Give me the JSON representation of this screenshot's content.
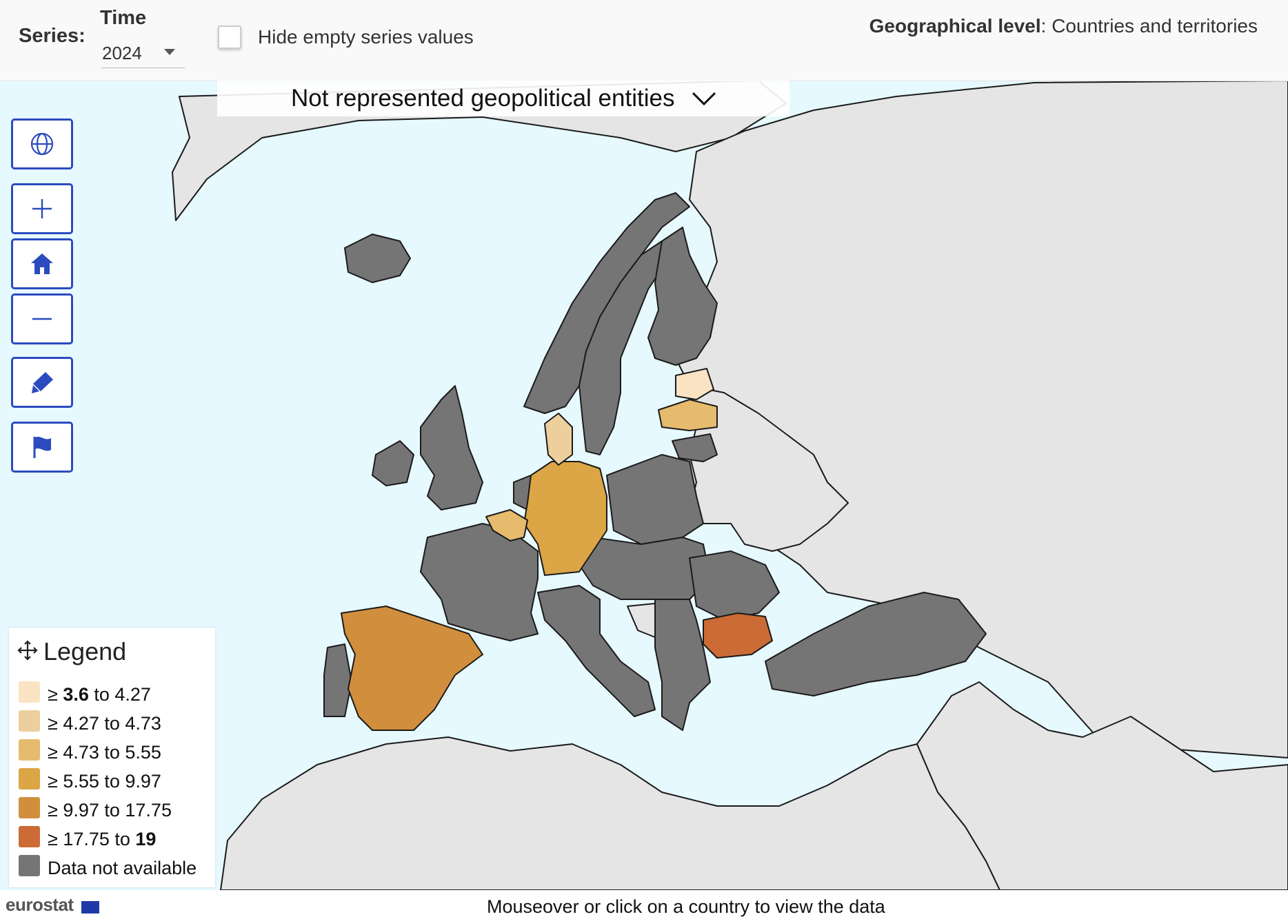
{
  "toolbar": {
    "series_label": "Series:",
    "time_label": "Time",
    "time_value": "2024",
    "hide_empty_label": "Hide empty series values",
    "hide_empty_checked": false,
    "geo_level_label": "Geographical level",
    "geo_level_value": ": Countries and territories"
  },
  "dropdown": {
    "label": "Not represented geopolitical entities"
  },
  "controls": [
    {
      "name": "globe-button",
      "icon": "globe-icon"
    },
    {
      "name": "zoom-in-button",
      "icon": "plus-icon"
    },
    {
      "name": "home-button",
      "icon": "home-icon"
    },
    {
      "name": "zoom-out-button",
      "icon": "minus-icon"
    },
    {
      "name": "highlight-button",
      "icon": "highlighter-icon"
    },
    {
      "name": "flag-button",
      "icon": "flag-icon"
    }
  ],
  "legend": {
    "title": "Legend",
    "classes": [
      {
        "prefix": "≥ ",
        "from": "3.6",
        "mid": " to ",
        "to": "4.27",
        "bold": "from",
        "color": "#fae3c3"
      },
      {
        "prefix": "≥ ",
        "from": "4.27",
        "mid": " to ",
        "to": "4.73",
        "bold": "",
        "color": "#edcf9d"
      },
      {
        "prefix": "≥ ",
        "from": "4.73",
        "mid": " to ",
        "to": "5.55",
        "bold": "",
        "color": "#e6bb6e"
      },
      {
        "prefix": "≥ ",
        "from": "5.55",
        "mid": " to ",
        "to": "9.97",
        "bold": "",
        "color": "#dca546"
      },
      {
        "prefix": "≥ ",
        "from": "9.97",
        "mid": " to ",
        "to": "17.75",
        "bold": "",
        "color": "#d18f3e"
      },
      {
        "prefix": "≥ ",
        "from": "17.75",
        "mid": " to ",
        "to": "19",
        "bold": "to",
        "color": "#cb6b36"
      }
    ],
    "na_label": "Data not available",
    "na_color": "#757575"
  },
  "map_colors": {
    "sea": "#e6f9ff",
    "land_outside": "#e5e5e5",
    "no_data": "#757575",
    "border": "#1a1a1a"
  },
  "regions": [
    {
      "name": "Bulgaria",
      "class": 6
    },
    {
      "name": "Spain",
      "class": 5
    },
    {
      "name": "Germany",
      "class": 4
    },
    {
      "name": "Belgium",
      "class": 3
    },
    {
      "name": "Lithuania",
      "class": 3
    },
    {
      "name": "Denmark",
      "class": 2
    },
    {
      "name": "Latvia",
      "class": 1
    }
  ],
  "footer": {
    "logo": "eurostat",
    "hint": "Mouseover or click on a country to view the data"
  }
}
